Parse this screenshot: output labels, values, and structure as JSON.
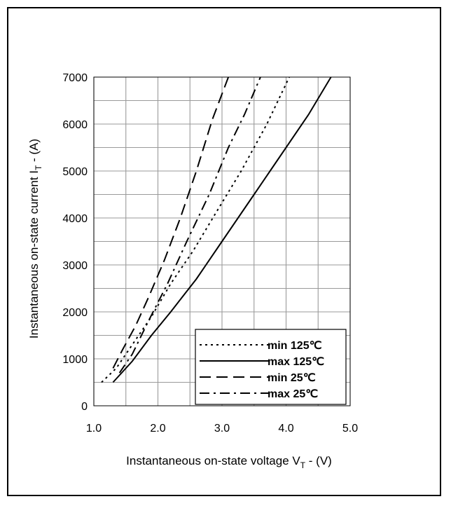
{
  "chart_data": {
    "type": "line",
    "xlabel_main": "Instantaneous on-state voltage V",
    "xlabel_sub": "T",
    "xlabel_tail": " - (V)",
    "ylabel_main": "Instantaneous on-state current I",
    "ylabel_sub": "T",
    "ylabel_tail": " - (A)",
    "xlim": [
      1.0,
      5.0
    ],
    "ylim": [
      0,
      7000
    ],
    "x_ticks": [
      1.0,
      2.0,
      3.0,
      4.0,
      5.0
    ],
    "x_tick_labels": [
      "1.0",
      "2.0",
      "3.0",
      "4.0",
      "5.0"
    ],
    "y_ticks": [
      0,
      1000,
      2000,
      3000,
      4000,
      5000,
      6000,
      7000
    ],
    "y_tick_labels": [
      "0",
      "1000",
      "2000",
      "3000",
      "4000",
      "5000",
      "6000",
      "7000"
    ],
    "grid": true,
    "legend_position": "bottom-right",
    "series": [
      {
        "name": "min 125℃",
        "dash": "dotted",
        "points": [
          [
            1.12,
            500
          ],
          [
            1.35,
            800
          ],
          [
            1.6,
            1300
          ],
          [
            1.9,
            1900
          ],
          [
            2.2,
            2600
          ],
          [
            2.55,
            3300
          ],
          [
            2.9,
            4100
          ],
          [
            3.3,
            5000
          ],
          [
            3.7,
            6000
          ],
          [
            4.05,
            7000
          ]
        ]
      },
      {
        "name": "max 125℃",
        "dash": "solid",
        "points": [
          [
            1.3,
            500
          ],
          [
            1.6,
            950
          ],
          [
            1.9,
            1500
          ],
          [
            2.2,
            2000
          ],
          [
            2.6,
            2700
          ],
          [
            3.0,
            3500
          ],
          [
            3.5,
            4500
          ],
          [
            4.0,
            5500
          ],
          [
            4.35,
            6200
          ],
          [
            4.7,
            7000
          ]
        ]
      },
      {
        "name": "min 25℃",
        "dash": "dashed",
        "points": [
          [
            1.3,
            800
          ],
          [
            1.45,
            1200
          ],
          [
            1.65,
            1700
          ],
          [
            1.85,
            2300
          ],
          [
            2.1,
            3100
          ],
          [
            2.35,
            4000
          ],
          [
            2.6,
            5000
          ],
          [
            2.85,
            6100
          ],
          [
            3.1,
            7000
          ]
        ]
      },
      {
        "name": "max 25℃",
        "dash": "dashdot",
        "points": [
          [
            1.4,
            700
          ],
          [
            1.6,
            1100
          ],
          [
            1.85,
            1800
          ],
          [
            2.15,
            2600
          ],
          [
            2.45,
            3500
          ],
          [
            2.8,
            4500
          ],
          [
            3.1,
            5500
          ],
          [
            3.35,
            6200
          ],
          [
            3.6,
            7000
          ]
        ]
      }
    ]
  }
}
